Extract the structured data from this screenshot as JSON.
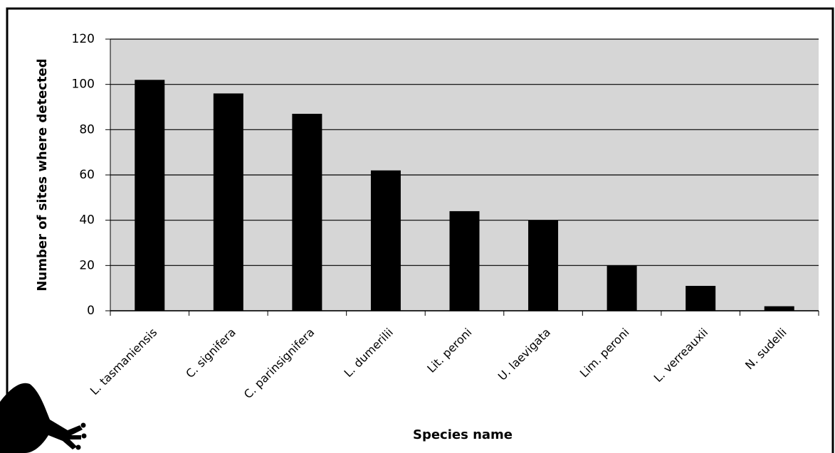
{
  "chart_data": {
    "type": "bar",
    "categories": [
      "L. tasmaniensis",
      "C. signifera",
      "C. parinsignifera",
      "L. dumerilii",
      "Lit. peroni",
      "U. laevigata",
      "Lim. peroni",
      "L. verreauxii",
      "N. sudelli"
    ],
    "values": [
      102,
      96,
      87,
      62,
      44,
      40,
      20,
      11,
      2
    ],
    "color": "#000000",
    "x_label": "Species name",
    "y_label": "Number of sites where detected",
    "ylim": [
      0,
      120
    ],
    "yticks": [
      0,
      20,
      40,
      60,
      80,
      100,
      120
    ],
    "grid": true
  }
}
